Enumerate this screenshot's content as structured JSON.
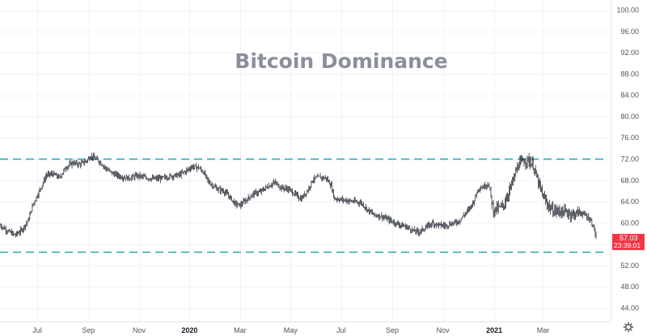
{
  "chart_data": {
    "type": "candlestick",
    "title": "Bitcoin Dominance",
    "ylim": [
      42,
      102
    ],
    "y_ticks": [
      "44.00",
      "48.00",
      "52.00",
      "56.00",
      "60.00",
      "64.00",
      "68.00",
      "72.00",
      "76.00",
      "80.00",
      "84.00",
      "88.00",
      "92.00",
      "96.00",
      "100.00"
    ],
    "x_ticks": [
      {
        "label": "Jul",
        "day": 45,
        "bold": false
      },
      {
        "label": "Sep",
        "day": 107,
        "bold": false
      },
      {
        "label": "Nov",
        "day": 168,
        "bold": false
      },
      {
        "label": "2020",
        "day": 229,
        "bold": true
      },
      {
        "label": "Mar",
        "day": 290,
        "bold": false
      },
      {
        "label": "May",
        "day": 351,
        "bold": false
      },
      {
        "label": "Jul",
        "day": 412,
        "bold": false
      },
      {
        "label": "Sep",
        "day": 474,
        "bold": false
      },
      {
        "label": "Nov",
        "day": 535,
        "bold": false
      },
      {
        "label": "2021",
        "day": 597,
        "bold": true
      },
      {
        "label": "Mar",
        "day": 656,
        "bold": false
      }
    ],
    "x_range": [
      0,
      720
    ],
    "levels": [
      72.0,
      54.5
    ],
    "level_color": "#26a6b5",
    "candle_color": "#131722",
    "grid": true,
    "current_price": {
      "value": 57.03,
      "label": "57.03",
      "countdown": "23:39:01",
      "color": "#f23645"
    },
    "trend_points": [
      [
        0,
        59.6
      ],
      [
        10,
        58.4
      ],
      [
        18,
        57.7
      ],
      [
        26,
        58.6
      ],
      [
        34,
        60.4
      ],
      [
        40,
        63.5
      ],
      [
        48,
        66.2
      ],
      [
        56,
        69.0
      ],
      [
        64,
        69.2
      ],
      [
        72,
        68.5
      ],
      [
        80,
        70.5
      ],
      [
        88,
        71.3
      ],
      [
        96,
        71.0
      ],
      [
        104,
        71.6
      ],
      [
        110,
        72.6
      ],
      [
        116,
        72.0
      ],
      [
        122,
        71.3
      ],
      [
        128,
        70.2
      ],
      [
        136,
        69.3
      ],
      [
        146,
        68.7
      ],
      [
        156,
        68.4
      ],
      [
        166,
        68.9
      ],
      [
        176,
        68.5
      ],
      [
        186,
        68.3
      ],
      [
        196,
        68.4
      ],
      [
        206,
        68.8
      ],
      [
        216,
        69.0
      ],
      [
        224,
        69.7
      ],
      [
        232,
        70.6
      ],
      [
        240,
        70.4
      ],
      [
        246,
        69.5
      ],
      [
        252,
        67.7
      ],
      [
        262,
        66.4
      ],
      [
        270,
        66.0
      ],
      [
        278,
        64.8
      ],
      [
        284,
        63.6
      ],
      [
        290,
        63.3
      ],
      [
        298,
        64.4
      ],
      [
        306,
        65.5
      ],
      [
        314,
        65.8
      ],
      [
        322,
        66.7
      ],
      [
        332,
        67.6
      ],
      [
        340,
        66.6
      ],
      [
        348,
        66.4
      ],
      [
        356,
        65.4
      ],
      [
        364,
        64.5
      ],
      [
        372,
        66.2
      ],
      [
        378,
        68.2
      ],
      [
        386,
        68.6
      ],
      [
        394,
        68.4
      ],
      [
        400,
        67.0
      ],
      [
        404,
        64.6
      ],
      [
        412,
        64.4
      ],
      [
        420,
        64.2
      ],
      [
        428,
        64.0
      ],
      [
        436,
        63.8
      ],
      [
        444,
        62.5
      ],
      [
        452,
        61.5
      ],
      [
        460,
        61.3
      ],
      [
        468,
        60.7
      ],
      [
        476,
        60.1
      ],
      [
        484,
        59.6
      ],
      [
        492,
        59.2
      ],
      [
        500,
        58.5
      ],
      [
        506,
        58.3
      ],
      [
        514,
        59.1
      ],
      [
        522,
        60.0
      ],
      [
        530,
        59.6
      ],
      [
        538,
        59.5
      ],
      [
        546,
        59.9
      ],
      [
        554,
        60.3
      ],
      [
        560,
        61.4
      ],
      [
        566,
        62.5
      ],
      [
        572,
        64.0
      ],
      [
        578,
        66.5
      ],
      [
        584,
        66.8
      ],
      [
        590,
        67.4
      ],
      [
        596,
        62.4
      ],
      [
        602,
        62.8
      ],
      [
        608,
        63.2
      ],
      [
        614,
        65.6
      ],
      [
        620,
        68.0
      ],
      [
        626,
        70.8
      ],
      [
        632,
        71.6
      ],
      [
        638,
        71.8
      ],
      [
        644,
        70.8
      ],
      [
        650,
        67.6
      ],
      [
        656,
        65.0
      ],
      [
        662,
        63.4
      ],
      [
        668,
        62.3
      ],
      [
        676,
        62.2
      ],
      [
        684,
        62.0
      ],
      [
        692,
        61.6
      ],
      [
        700,
        62.0
      ],
      [
        708,
        61.4
      ],
      [
        714,
        60.4
      ],
      [
        718,
        58.8
      ],
      [
        720,
        57.0
      ]
    ]
  }
}
